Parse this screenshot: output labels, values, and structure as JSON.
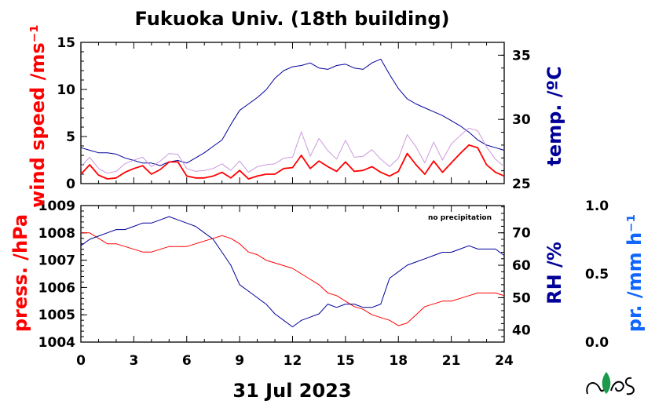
{
  "chart_data": [
    {
      "type": "line",
      "title": "Fukuoka Univ. (18th building)",
      "x_unit": "hour of day",
      "xlim": [
        0,
        24
      ],
      "left_axis": {
        "label": "wind speed /ms⁻¹",
        "ylim": [
          0,
          15
        ],
        "ticks": [
          0,
          5,
          10,
          15
        ],
        "color": "#ff0000"
      },
      "right_axis": {
        "label": "temp. /ºC",
        "ylim": [
          25,
          36
        ],
        "ticks": [
          25,
          30,
          35
        ],
        "color": "#000099"
      },
      "series": [
        {
          "axis": "right",
          "color": "#000099",
          "x": [
            0,
            0.5,
            1,
            1.5,
            2,
            2.5,
            3,
            3.5,
            4,
            4.5,
            5,
            5.5,
            6,
            6.5,
            7,
            7.5,
            8,
            8.5,
            9,
            9.5,
            10,
            10.5,
            11,
            11.5,
            12,
            12.5,
            13,
            13.5,
            14,
            14.5,
            15,
            15.5,
            16,
            16.5,
            17,
            17.5,
            18,
            18.5,
            19,
            19.5,
            20,
            20.5,
            21,
            21.5,
            22,
            22.5,
            23,
            23.5,
            24
          ],
          "values": [
            27.8,
            27.6,
            27.4,
            27.4,
            27.3,
            27.0,
            26.8,
            26.6,
            26.6,
            26.4,
            26.7,
            26.8,
            26.6,
            27.0,
            27.4,
            27.9,
            28.4,
            29.6,
            30.7,
            31.2,
            31.7,
            32.3,
            33.2,
            33.8,
            34.1,
            34.2,
            34.4,
            34.0,
            33.9,
            34.2,
            34.3,
            34.0,
            33.9,
            34.4,
            34.7,
            33.5,
            32.4,
            31.6,
            31.2,
            30.9,
            30.6,
            30.3,
            29.9,
            29.5,
            29.0,
            28.4,
            28.0,
            27.8,
            27.6
          ]
        },
        {
          "axis": "left",
          "color": "#ff0000",
          "x": [
            0,
            0.5,
            1,
            1.5,
            2,
            2.5,
            3,
            3.5,
            4,
            4.5,
            5,
            5.5,
            6,
            6.5,
            7,
            7.5,
            8,
            8.5,
            9,
            9.5,
            10,
            10.5,
            11,
            11.5,
            12,
            12.5,
            13,
            13.5,
            14,
            14.5,
            15,
            15.5,
            16,
            16.5,
            17,
            17.5,
            18,
            18.5,
            19,
            19.5,
            20,
            20.5,
            21,
            21.5,
            22,
            22.5,
            23,
            23.5,
            24
          ],
          "values": [
            1.0,
            2.0,
            0.9,
            0.5,
            0.6,
            1.2,
            1.6,
            1.9,
            1.0,
            1.5,
            2.3,
            2.3,
            0.8,
            0.6,
            0.6,
            0.8,
            1.2,
            0.6,
            1.4,
            0.5,
            0.8,
            1.0,
            1.0,
            1.6,
            1.7,
            3.0,
            1.6,
            2.4,
            1.8,
            1.3,
            2.3,
            1.3,
            1.4,
            1.8,
            1.2,
            0.8,
            1.3,
            3.2,
            2.0,
            1.0,
            2.4,
            1.2,
            2.2,
            3.2,
            4.1,
            3.8,
            2.0,
            1.2,
            0.8
          ]
        },
        {
          "axis": "left",
          "color": "#cc99dd",
          "x": [
            0,
            0.5,
            1,
            1.5,
            2,
            2.5,
            3,
            3.5,
            4,
            4.5,
            5,
            5.5,
            6,
            6.5,
            7,
            7.5,
            8,
            8.5,
            9,
            9.5,
            10,
            10.5,
            11,
            11.5,
            12,
            12.5,
            13,
            13.5,
            14,
            14.5,
            15,
            15.5,
            16,
            16.5,
            17,
            17.5,
            18,
            18.5,
            19,
            19.5,
            20,
            20.5,
            21,
            21.5,
            22,
            22.5,
            23,
            23.5,
            24
          ],
          "values": [
            1.8,
            2.8,
            1.6,
            1.1,
            1.3,
            2.1,
            2.5,
            2.8,
            1.8,
            2.4,
            3.2,
            3.1,
            1.6,
            1.3,
            1.4,
            1.6,
            2.1,
            1.4,
            2.4,
            1.2,
            1.8,
            2.0,
            2.1,
            2.7,
            2.8,
            5.5,
            2.9,
            4.8,
            3.5,
            2.6,
            4.6,
            2.8,
            2.9,
            3.6,
            2.6,
            1.8,
            2.7,
            5.2,
            3.9,
            2.2,
            4.4,
            2.5,
            4.2,
            5.1,
            5.9,
            5.6,
            3.9,
            2.6,
            1.8
          ]
        }
      ]
    },
    {
      "type": "line",
      "x_unit": "hour of day",
      "xlim": [
        0,
        24
      ],
      "x_ticks": [
        "0",
        "3",
        "6",
        "9",
        "12",
        "15",
        "18",
        "21",
        "24"
      ],
      "xlabel": "31 Jul 2023",
      "annotation": "no precipitation",
      "left_axis": {
        "label": "press. /hPa",
        "ylim": [
          1004,
          1009
        ],
        "ticks": [
          1004,
          1005,
          1006,
          1007,
          1008,
          1009
        ],
        "color": "#ff0000"
      },
      "right_axis": {
        "label": "RH /%",
        "ylim": [
          36.3,
          78.4
        ],
        "ticks": [
          40,
          50,
          60,
          70
        ],
        "color": "#000099"
      },
      "far_right_axis": {
        "label": "pr. /mm h⁻¹",
        "ylim": [
          0.0,
          1.0
        ],
        "ticks": [
          "0.0",
          "0.5",
          "1.0"
        ],
        "color": "#1166ff"
      },
      "series": [
        {
          "axis": "left",
          "color": "#ff0000",
          "x": [
            0,
            0.5,
            1,
            1.5,
            2,
            2.5,
            3,
            3.5,
            4,
            4.5,
            5,
            5.5,
            6,
            6.5,
            7,
            7.5,
            8,
            8.5,
            9,
            9.5,
            10,
            10.5,
            11,
            11.5,
            12,
            12.5,
            13,
            13.5,
            14,
            14.5,
            15,
            15.5,
            16,
            16.5,
            17,
            17.5,
            18,
            18.5,
            19,
            19.5,
            20,
            20.5,
            21,
            21.5,
            22,
            22.5,
            23,
            23.5,
            24
          ],
          "values": [
            1008.0,
            1008.0,
            1007.8,
            1007.6,
            1007.6,
            1007.5,
            1007.4,
            1007.3,
            1007.3,
            1007.4,
            1007.5,
            1007.5,
            1007.5,
            1007.6,
            1007.7,
            1007.8,
            1007.9,
            1007.8,
            1007.6,
            1007.3,
            1007.2,
            1007.0,
            1006.9,
            1006.8,
            1006.7,
            1006.5,
            1006.3,
            1006.1,
            1005.8,
            1005.7,
            1005.5,
            1005.3,
            1005.2,
            1005.0,
            1004.9,
            1004.8,
            1004.6,
            1004.7,
            1005.0,
            1005.3,
            1005.4,
            1005.5,
            1005.5,
            1005.6,
            1005.7,
            1005.8,
            1005.8,
            1005.8,
            1005.7
          ]
        },
        {
          "axis": "right",
          "color": "#000099",
          "x": [
            0,
            0.5,
            1,
            1.5,
            2,
            2.5,
            3,
            3.5,
            4,
            4.5,
            5,
            5.5,
            6,
            6.5,
            7,
            7.5,
            8,
            8.5,
            9,
            9.5,
            10,
            10.5,
            11,
            11.5,
            12,
            12.5,
            13,
            13.5,
            14,
            14.5,
            15,
            15.5,
            16,
            16.5,
            17,
            17.5,
            18,
            18.5,
            19,
            19.5,
            20,
            20.5,
            21,
            21.5,
            22,
            22.5,
            23,
            23.5,
            24
          ],
          "values": [
            66,
            68,
            69,
            70,
            71,
            71,
            72,
            73,
            73,
            74,
            75,
            74,
            73,
            72,
            70,
            68,
            64,
            60,
            54,
            52,
            50,
            48,
            45,
            43,
            41,
            43,
            44,
            45,
            48,
            47,
            48,
            48,
            47,
            47,
            48,
            56,
            58,
            60,
            61,
            62,
            63,
            64,
            64,
            65,
            66,
            65,
            65,
            65,
            63
          ]
        }
      ]
    }
  ],
  "logo": {
    "text": "NES"
  }
}
